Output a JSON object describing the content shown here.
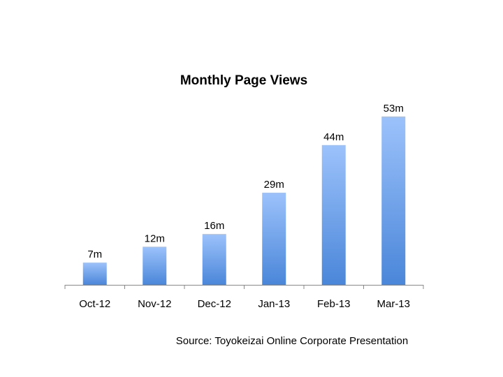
{
  "chart_data": {
    "type": "bar",
    "title": "Monthly Page Views",
    "categories": [
      "Oct-12",
      "Nov-12",
      "Dec-12",
      "Jan-13",
      "Feb-13",
      "Mar-13"
    ],
    "values": [
      7,
      12,
      16,
      29,
      44,
      53
    ],
    "data_labels": [
      "7m",
      "12m",
      "16m",
      "29m",
      "44m",
      "53m"
    ],
    "ylim": [
      0,
      60
    ],
    "grid": false,
    "legend": "none",
    "bar_color_top": "#9cc2fb",
    "bar_color_bottom": "#4a86d9",
    "axis_color": "#888888"
  },
  "source": "Source: Toyokeizai Online Corporate Presentation"
}
